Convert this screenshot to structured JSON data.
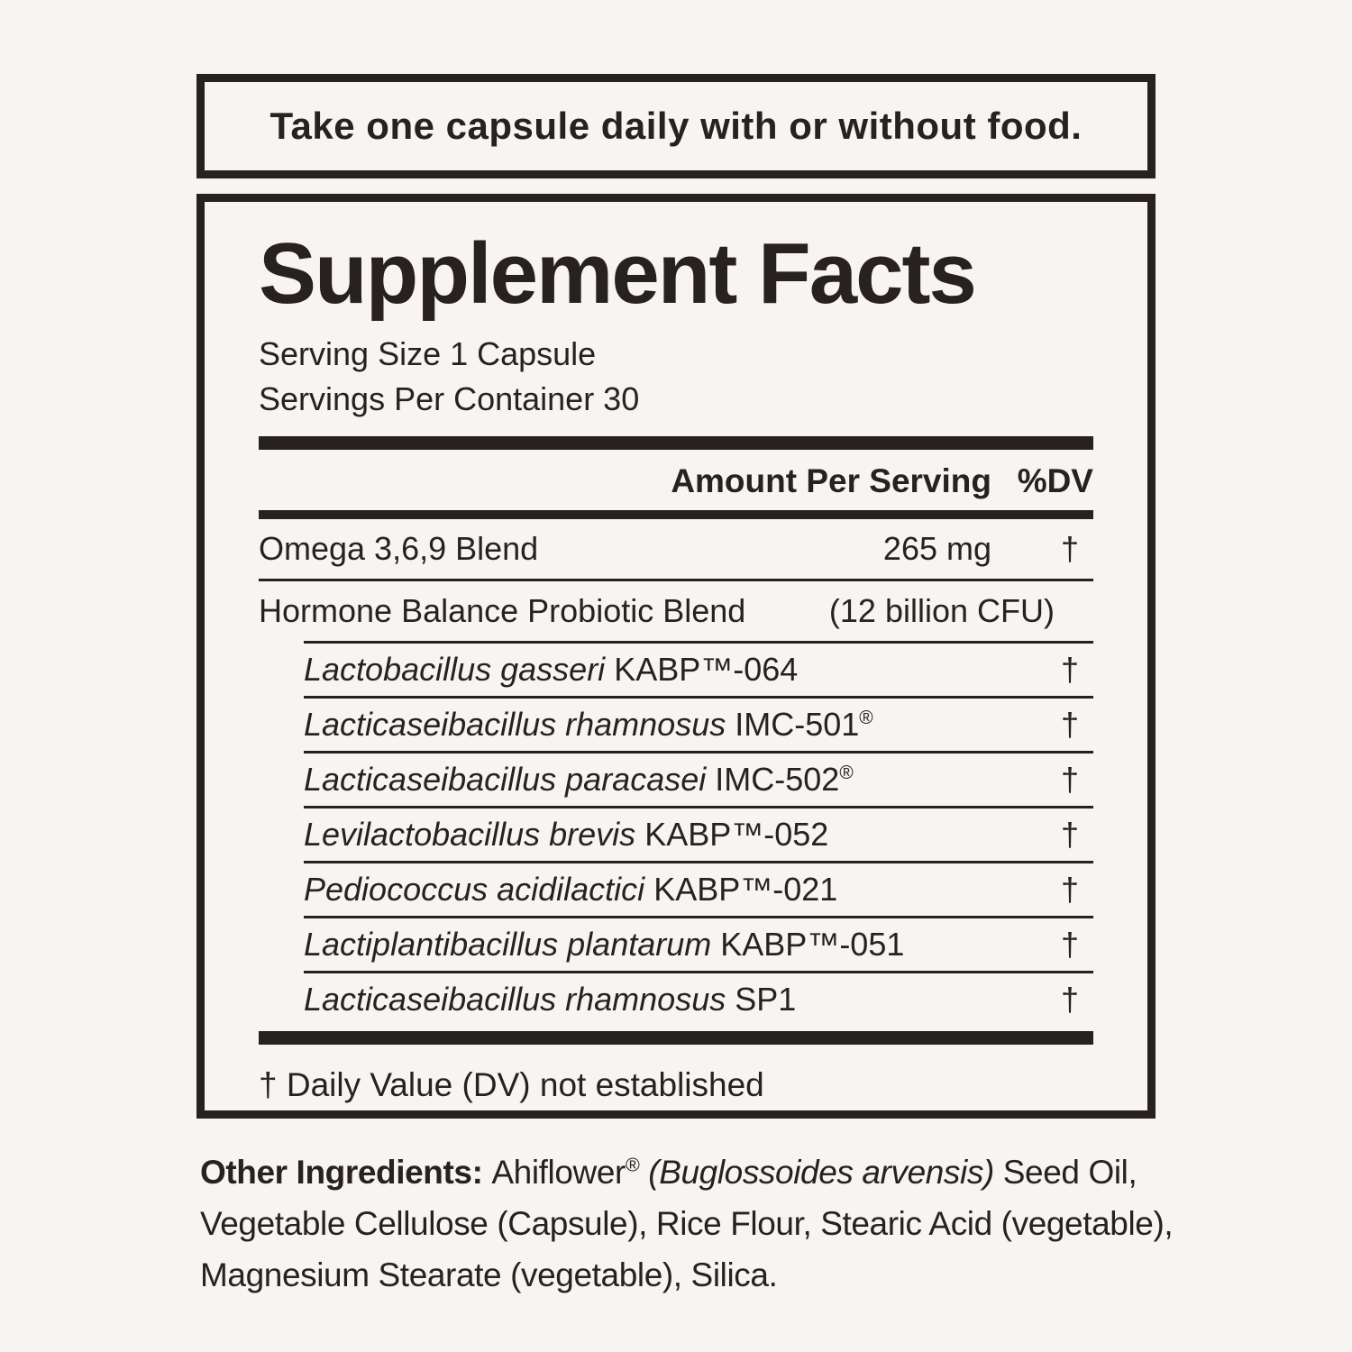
{
  "colors": {
    "ink": "#272220",
    "background": "#f8f4f1"
  },
  "instruction": {
    "text": "Take one capsule daily with or without food."
  },
  "facts": {
    "title": "Supplement Facts",
    "serving_size": "Serving Size 1 Capsule",
    "servings_per_container": "Servings Per Container 30",
    "columns": {
      "amount": "Amount Per Serving",
      "dv": "%DV"
    },
    "rows": [
      {
        "name": "Omega 3,6,9 Blend",
        "amount": "265 mg",
        "dv": "†",
        "indent": false
      },
      {
        "name": "Hormone Balance Probiotic Blend",
        "amount": "(12 billion CFU)",
        "dv": "",
        "indent": false
      },
      {
        "species": "Lactobacillus gasseri",
        "code": "KABP™-064",
        "amount": "",
        "dv": "†",
        "indent": true
      },
      {
        "species": "Lacticaseibacillus rhamnosus",
        "code": "IMC-501®",
        "amount": "",
        "dv": "†",
        "indent": true
      },
      {
        "species": "Lacticaseibacillus paracasei",
        "code": "IMC-502®",
        "amount": "",
        "dv": "†",
        "indent": true
      },
      {
        "species": "Levilactobacillus brevis",
        "code": "KABP™-052",
        "amount": "",
        "dv": "†",
        "indent": true
      },
      {
        "species": "Pediococcus acidilactici",
        "code": "KABP™-021",
        "amount": "",
        "dv": "†",
        "indent": true
      },
      {
        "species": "Lactiplantibacillus plantarum",
        "code": "KABP™-051",
        "amount": "",
        "dv": "†",
        "indent": true
      },
      {
        "species": "Lacticaseibacillus rhamnosus",
        "code": "SP1",
        "amount": "",
        "dv": "†",
        "indent": true
      }
    ],
    "footnote": "† Daily Value (DV) not established"
  },
  "other_ingredients": {
    "lines": [
      [
        {
          "text": "Other Ingredients: ",
          "style": "bold"
        },
        {
          "text": "Ahiflower",
          "style": "regular"
        },
        {
          "text": "®",
          "style": "sup"
        },
        {
          "text": " ",
          "style": "regular"
        },
        {
          "text": "(Buglossoides arvensis)",
          "style": "italic"
        },
        {
          "text": " Seed Oil,",
          "style": "regular"
        }
      ],
      [
        {
          "text": "Vegetable Cellulose (Capsule), Rice Flour, Stearic Acid (vegetable),",
          "style": "regular"
        }
      ],
      [
        {
          "text": "Magnesium Stearate (vegetable), Silica.",
          "style": "regular"
        }
      ]
    ]
  }
}
